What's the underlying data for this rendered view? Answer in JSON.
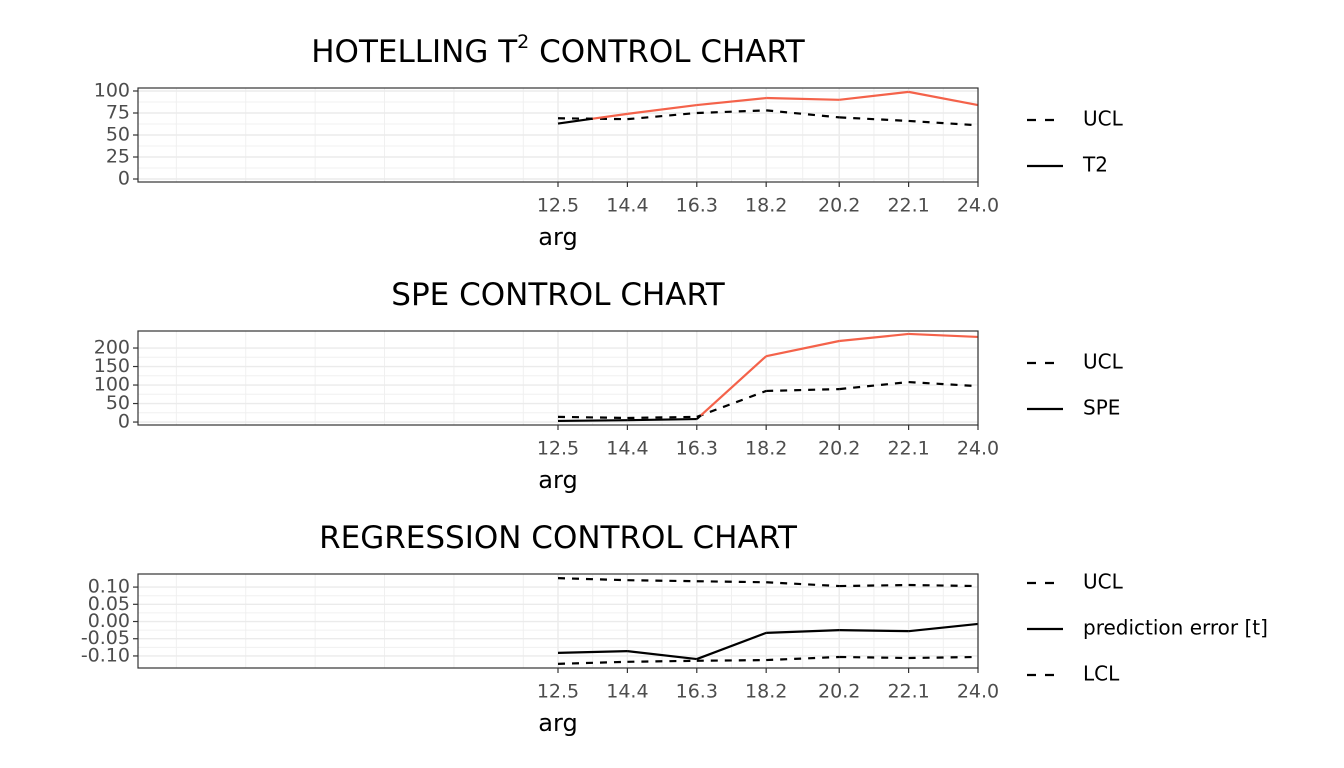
{
  "chart_data": [
    {
      "type": "line",
      "title": [
        "HOTELLING T",
        "2",
        " CONTROL CHART"
      ],
      "xlabel": "arg",
      "x": [
        12.5,
        14.4,
        16.3,
        18.2,
        20.2,
        22.1,
        24
      ],
      "xlim": [
        1,
        24
      ],
      "xticks": [
        12.5,
        14.4,
        16.3,
        18.2,
        20.2,
        22.1,
        {
          "value": 24,
          "label": "24.0"
        }
      ],
      "ylim": [
        -3.4,
        103.4
      ],
      "yticks": [
        0,
        25,
        50,
        75,
        100
      ],
      "grid": true,
      "series": [
        {
          "name": "UCL",
          "color": "#000000",
          "dash": true,
          "values": [
            69,
            68,
            75,
            78,
            70,
            66,
            61
          ]
        },
        {
          "name": "T2",
          "color": "#000000",
          "alarm_color": "#f4624a",
          "dash": false,
          "values": [
            63,
            74,
            84,
            92,
            90,
            99,
            84
          ]
        }
      ]
    },
    {
      "type": "line",
      "title": [
        "SPE CONTROL CHART"
      ],
      "xlabel": "arg",
      "x": [
        12.5,
        14.4,
        16.3,
        18.2,
        20.2,
        22.1,
        24
      ],
      "xlim": [
        1,
        24
      ],
      "xticks": [
        12.5,
        14.4,
        16.3,
        18.2,
        20.2,
        22.1,
        {
          "value": 24,
          "label": "24.0"
        }
      ],
      "ylim": [
        -8,
        246
      ],
      "yticks": [
        0,
        50,
        100,
        150,
        200
      ],
      "grid": true,
      "series": [
        {
          "name": "UCL",
          "color": "#000000",
          "dash": true,
          "values": [
            14,
            11,
            14,
            84,
            89,
            108,
            97
          ]
        },
        {
          "name": "SPE",
          "color": "#000000",
          "alarm_color": "#f4624a",
          "dash": false,
          "values": [
            3,
            5,
            8,
            178,
            219,
            238,
            230
          ]
        }
      ]
    },
    {
      "type": "line",
      "title": [
        "REGRESSION CONTROL CHART"
      ],
      "xlabel": "arg",
      "x": [
        12.5,
        14.4,
        16.3,
        18.2,
        20.2,
        22.1,
        24
      ],
      "xlim": [
        1,
        24
      ],
      "xticks": [
        12.5,
        14.4,
        16.3,
        18.2,
        20.2,
        22.1,
        {
          "value": 24,
          "label": "24.0"
        }
      ],
      "ylim": [
        -0.135,
        0.138
      ],
      "yticks": [
        {
          "value": -0.1,
          "label": "-0.10"
        },
        {
          "value": -0.05,
          "label": "-0.05"
        },
        {
          "value": 0,
          "label": "0.00"
        },
        {
          "value": 0.05,
          "label": "0.05"
        },
        {
          "value": 0.1,
          "label": "0.10"
        }
      ],
      "grid": true,
      "series": [
        {
          "name": "UCL",
          "color": "#000000",
          "dash": true,
          "values": [
            0.126,
            0.12,
            0.117,
            0.114,
            0.103,
            0.106,
            0.103
          ]
        },
        {
          "name": "prediction error [t]",
          "color": "#000000",
          "dash": false,
          "values": [
            -0.091,
            -0.086,
            -0.109,
            -0.033,
            -0.025,
            -0.028,
            -0.007
          ]
        },
        {
          "name": "LCL",
          "color": "#000000",
          "dash": true,
          "values": [
            -0.123,
            -0.117,
            -0.114,
            -0.112,
            -0.103,
            -0.106,
            -0.103
          ]
        }
      ]
    }
  ]
}
